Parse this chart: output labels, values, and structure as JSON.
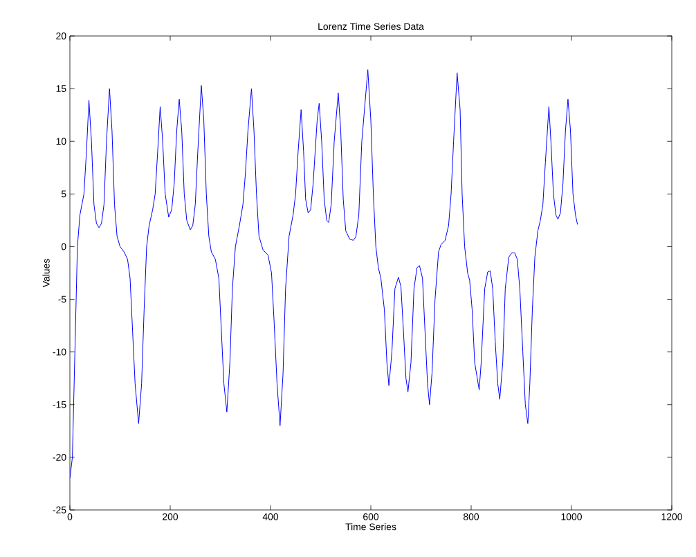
{
  "chart_data": {
    "type": "line",
    "title": "Lorenz Time Series Data",
    "xlabel": "Time Series",
    "ylabel": "Values",
    "xlim": [
      0,
      1200
    ],
    "ylim": [
      -25,
      20
    ],
    "xticks": [
      0,
      200,
      400,
      600,
      800,
      1000,
      1200
    ],
    "yticks": [
      -25,
      -20,
      -15,
      -10,
      -5,
      0,
      5,
      10,
      15,
      20
    ],
    "grid": false,
    "line_style": "solid",
    "series": [
      {
        "color": "#0000ff",
        "x": [
          0,
          5,
          10,
          15,
          20,
          28,
          33,
          38,
          43,
          48,
          53,
          58,
          63,
          68,
          73,
          79,
          84,
          89,
          94,
          100,
          108,
          115,
          120,
          125,
          130,
          137,
          143,
          148,
          153,
          158,
          165,
          170,
          175,
          180,
          185,
          190,
          197,
          203,
          208,
          213,
          218,
          223,
          228,
          233,
          240,
          245,
          250,
          255,
          262,
          267,
          272,
          277,
          282,
          290,
          297,
          302,
          307,
          313,
          319,
          324,
          330,
          338,
          345,
          350,
          355,
          362,
          367,
          372,
          377,
          385,
          395,
          402,
          407,
          413,
          419,
          425,
          430,
          437,
          445,
          450,
          455,
          461,
          466,
          470,
          475,
          480,
          485,
          493,
          497,
          502,
          507,
          512,
          516,
          521,
          527,
          535,
          540,
          545,
          550,
          558,
          565,
          570,
          576,
          582,
          594,
          600,
          605,
          610,
          615,
          620,
          627,
          632,
          636,
          642,
          648,
          655,
          660,
          665,
          670,
          674,
          680,
          686,
          692,
          697,
          703,
          708,
          713,
          717,
          722,
          728,
          735,
          740,
          748,
          755,
          760,
          765,
          772,
          778,
          782,
          787,
          793,
          797,
          802,
          807,
          816,
          820,
          827,
          833,
          838,
          843,
          848,
          853,
          857,
          863,
          868,
          875,
          881,
          887,
          892,
          897,
          903,
          908,
          913,
          917,
          922,
          927,
          933,
          938,
          943,
          948,
          955,
          959,
          964,
          969,
          973,
          978,
          983,
          988,
          993,
          998,
          1003,
          1008,
          1012
        ],
        "values": [
          -22,
          -20,
          -10,
          0,
          3,
          5,
          9,
          13.9,
          10,
          4,
          2.2,
          1.8,
          2.2,
          4,
          10,
          15,
          11,
          4,
          1,
          0,
          -0.5,
          -1.2,
          -3,
          -8,
          -13,
          -16.8,
          -13,
          -6,
          0,
          2,
          3.5,
          5,
          9,
          13.3,
          10,
          5,
          2.8,
          3.5,
          6,
          11,
          14,
          11,
          5,
          2.5,
          1.6,
          2,
          4,
          9,
          15.3,
          12,
          5,
          1,
          -0.5,
          -1.2,
          -3,
          -8,
          -13,
          -15.7,
          -11,
          -4,
          0,
          2,
          4,
          7,
          11,
          15,
          11,
          5,
          1,
          -0.3,
          -0.8,
          -2.5,
          -7,
          -13,
          -17,
          -12,
          -4,
          1,
          3,
          5,
          9,
          13,
          9,
          4.5,
          3.2,
          3.5,
          6,
          12,
          13.6,
          10,
          4.5,
          2.5,
          2.3,
          4,
          10,
          14.6,
          11,
          4.5,
          1.5,
          0.7,
          0.6,
          0.9,
          3,
          10,
          16.8,
          12,
          5,
          0,
          -2,
          -3,
          -6,
          -11,
          -13.2,
          -10,
          -4,
          -2.9,
          -3.8,
          -8,
          -12.5,
          -13.8,
          -11,
          -4,
          -2,
          -1.8,
          -3,
          -8,
          -13,
          -15,
          -12,
          -5,
          -0.5,
          0.2,
          0.6,
          2,
          5,
          10,
          16.5,
          13,
          5,
          0,
          -2.5,
          -3.2,
          -6,
          -11,
          -13.6,
          -11,
          -4,
          -2.4,
          -2.3,
          -4,
          -9,
          -13,
          -14.5,
          -11,
          -4,
          -1,
          -0.6,
          -0.6,
          -1.2,
          -4,
          -10,
          -15,
          -16.8,
          -13,
          -6,
          -1,
          1.5,
          2.5,
          4,
          8,
          13.3,
          10,
          5,
          3,
          2.6,
          3.2,
          6,
          11,
          14,
          11,
          5,
          3,
          2.1
        ]
      }
    ]
  }
}
